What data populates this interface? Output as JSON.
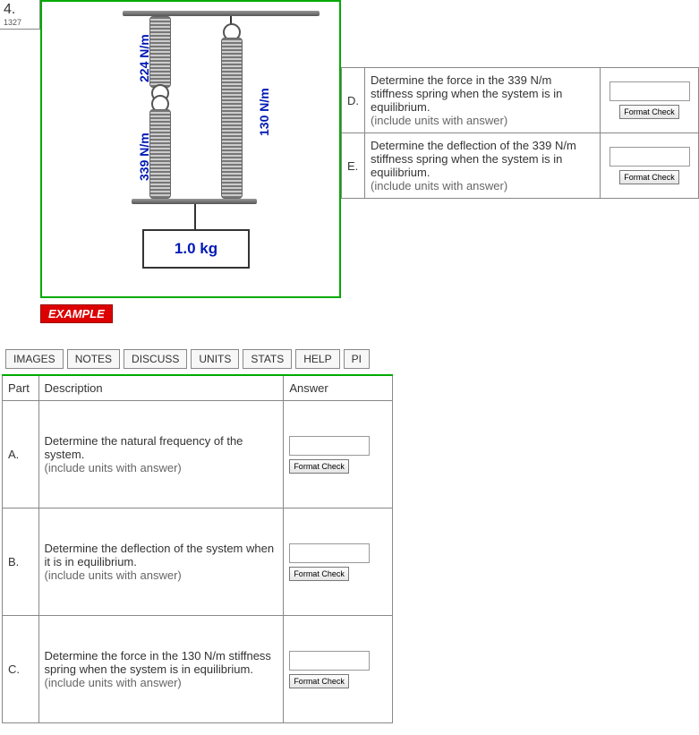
{
  "question_number": "4.",
  "question_id": "1327",
  "diagram": {
    "spring1_label": "224 N/m",
    "spring2_label": "339 N/m",
    "spring3_label": "130 N/m",
    "mass_label": "1.0 kg",
    "label_color": "#0019b5",
    "frame_color": "#00a000"
  },
  "example_badge": "EXAMPLE",
  "tabs": [
    "IMAGES",
    "NOTES",
    "DISCUSS",
    "UNITS",
    "STATS",
    "HELP",
    "PI"
  ],
  "headers": {
    "part": "Part",
    "desc": "Description",
    "ans": "Answer"
  },
  "format_check_label": "Format Check",
  "units_hint": "(include units with answer)",
  "parts": {
    "A": "Determine the natural frequency of the system.",
    "B": "Determine the deflection of the system when it is in equilibrium.",
    "C": "Determine the force in the 130 N/m stiffness spring when the system is in equilibrium.",
    "D": "Determine the force in the 339 N/m stiffness spring when the system is in equilibrium.",
    "E": "Determine the deflection of the 339 N/m stiffness spring when the system is in equilibrium."
  }
}
